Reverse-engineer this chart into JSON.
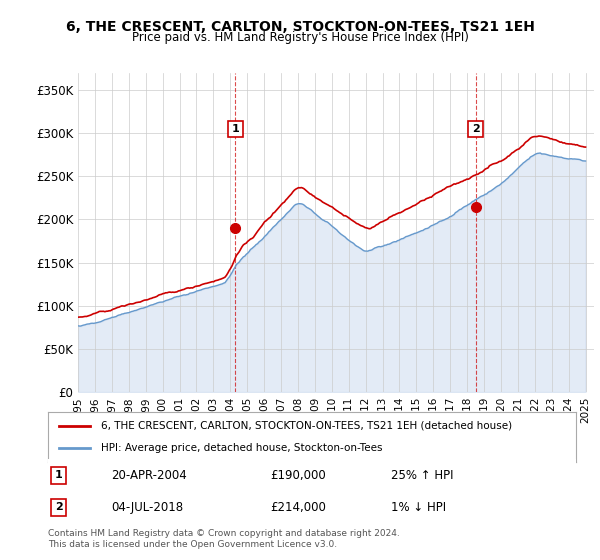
{
  "title": "6, THE CRESCENT, CARLTON, STOCKTON-ON-TEES, TS21 1EH",
  "subtitle": "Price paid vs. HM Land Registry's House Price Index (HPI)",
  "ylabel_ticks": [
    "£0",
    "£50K",
    "£100K",
    "£150K",
    "£200K",
    "£250K",
    "£300K",
    "£350K"
  ],
  "ytick_values": [
    0,
    50000,
    100000,
    150000,
    200000,
    250000,
    300000,
    350000
  ],
  "ylim": [
    0,
    370000
  ],
  "xlim_start": 1995.0,
  "xlim_end": 2025.5,
  "sale1_x": 2004.305,
  "sale1_y": 190000,
  "sale1_label": "1",
  "sale1_date": "20-APR-2004",
  "sale1_price": "£190,000",
  "sale1_hpi": "25% ↑ HPI",
  "sale2_x": 2018.504,
  "sale2_y": 214000,
  "sale2_label": "2",
  "sale2_date": "04-JUL-2018",
  "sale2_price": "£214,000",
  "sale2_hpi": "1% ↓ HPI",
  "legend_line1": "6, THE CRESCENT, CARLTON, STOCKTON-ON-TEES, TS21 1EH (detached house)",
  "legend_line2": "HPI: Average price, detached house, Stockton-on-Tees",
  "footer": "Contains HM Land Registry data © Crown copyright and database right 2024.\nThis data is licensed under the Open Government Licence v3.0.",
  "price_line_color": "#cc0000",
  "hpi_line_color": "#6699cc",
  "hpi_fill_color": "#c8d8ee",
  "background_color": "#ffffff",
  "plot_bg_color": "#ffffff",
  "grid_color": "#cccccc"
}
